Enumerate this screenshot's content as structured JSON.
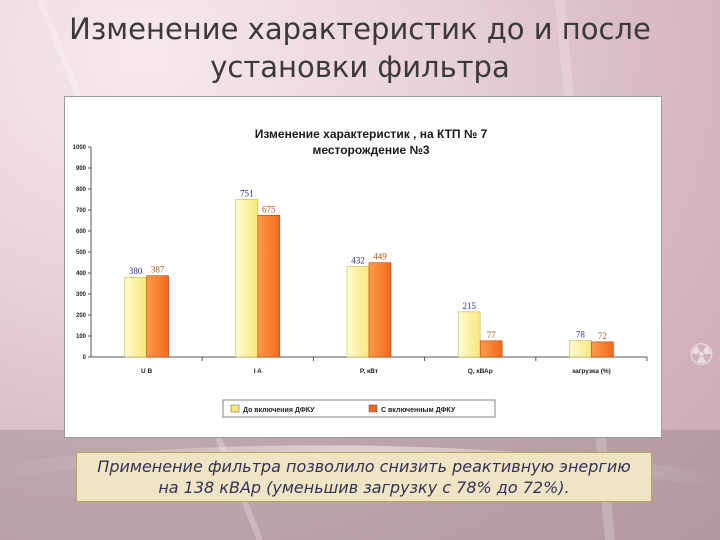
{
  "slide": {
    "title_line1": "Изменение характеристик  до и после",
    "title_line2": "установки фильтра",
    "note_line1": "Применение фильтра позволило снизить реактивную энергию",
    "note_line2": "на 138 кВАр (уменьшив загрузку с 78% до 72%)."
  },
  "chart_data": {
    "type": "bar",
    "title_line1": "Изменение характеристик , на КТП № 7",
    "title_line2": "месторождение №3",
    "categories": [
      "U B",
      "I A",
      "P, кВт",
      "Q, кВАр",
      "загрузка (%)"
    ],
    "series": [
      {
        "name": "До включения ДФКУ",
        "values": [
          380,
          751,
          432,
          215,
          78
        ],
        "label_color": "#2a2a9a"
      },
      {
        "name": "С включенным ДФКУ",
        "values": [
          387,
          675,
          449,
          77,
          72
        ],
        "label_color": "#b0560f"
      }
    ],
    "ylim": [
      0,
      1000
    ],
    "yticks": [
      0,
      100,
      200,
      300,
      400,
      500,
      600,
      700,
      800,
      900,
      1000
    ],
    "legend_position": "bottom",
    "grid": false,
    "colors": {
      "series1": "#f7e87a",
      "series2": "#f26a1b"
    }
  }
}
